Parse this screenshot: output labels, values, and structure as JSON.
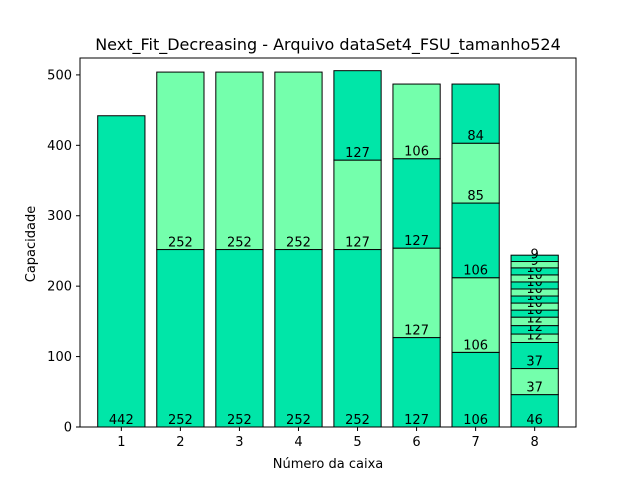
{
  "chart_data": {
    "type": "bar",
    "stacked": true,
    "title": "Next_Fit_Decreasing - Arquivo dataSet4_FSU_tamanho524",
    "xlabel": "Número da caixa",
    "ylabel": "Capacidade",
    "ylim": [
      0,
      524
    ],
    "yticks": [
      0,
      100,
      200,
      300,
      400,
      500
    ],
    "grid": false,
    "colors": {
      "primary": "#00e6a8",
      "alternate": "#74ffac",
      "edge": "#000000"
    },
    "categories": [
      "1",
      "2",
      "3",
      "4",
      "5",
      "6",
      "7",
      "8"
    ],
    "bins": [
      {
        "label": "1",
        "items": [
          442
        ]
      },
      {
        "label": "2",
        "items": [
          252,
          252
        ]
      },
      {
        "label": "3",
        "items": [
          252,
          252
        ]
      },
      {
        "label": "4",
        "items": [
          252,
          252
        ]
      },
      {
        "label": "5",
        "items": [
          252,
          127,
          127
        ]
      },
      {
        "label": "6",
        "items": [
          127,
          127,
          127,
          106
        ]
      },
      {
        "label": "7",
        "items": [
          106,
          106,
          106,
          85,
          84
        ]
      },
      {
        "label": "8",
        "items": [
          46,
          37,
          37,
          12,
          12,
          12,
          10,
          10,
          10,
          10,
          10,
          10,
          10,
          9,
          9
        ]
      }
    ]
  }
}
